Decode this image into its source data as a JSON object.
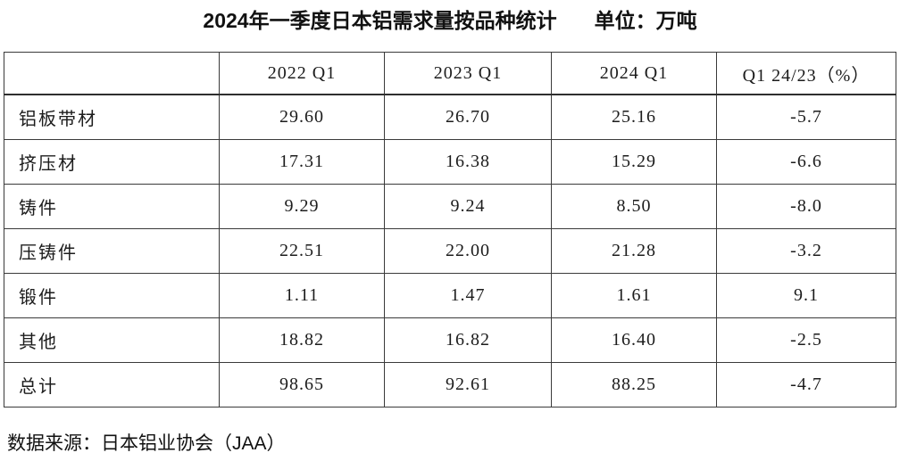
{
  "title": {
    "text": "2024年一季度日本铝需求量按品种统计",
    "unit": "单位：万吨"
  },
  "table": {
    "columns": [
      "",
      "2022 Q1",
      "2023 Q1",
      "2024 Q1",
      "Q1 24/23（%）"
    ],
    "rows": [
      {
        "label": "铝板带材",
        "values": [
          "29.60",
          "26.70",
          "25.16",
          "-5.7"
        ]
      },
      {
        "label": "挤压材",
        "values": [
          "17.31",
          "16.38",
          "15.29",
          "-6.6"
        ]
      },
      {
        "label": "铸件",
        "values": [
          "9.29",
          "9.24",
          "8.50",
          "-8.0"
        ]
      },
      {
        "label": "压铸件",
        "values": [
          "22.51",
          "22.00",
          "21.28",
          "-3.2"
        ]
      },
      {
        "label": "锻件",
        "values": [
          "1.11",
          "1.47",
          "1.61",
          "9.1"
        ]
      },
      {
        "label": "其他",
        "values": [
          "18.82",
          "16.82",
          "16.40",
          "-2.5"
        ]
      },
      {
        "label": "总计",
        "values": [
          "98.65",
          "92.61",
          "88.25",
          "-4.7"
        ]
      }
    ]
  },
  "footer": {
    "source": "数据来源：日本铝业协会（JAA）"
  }
}
